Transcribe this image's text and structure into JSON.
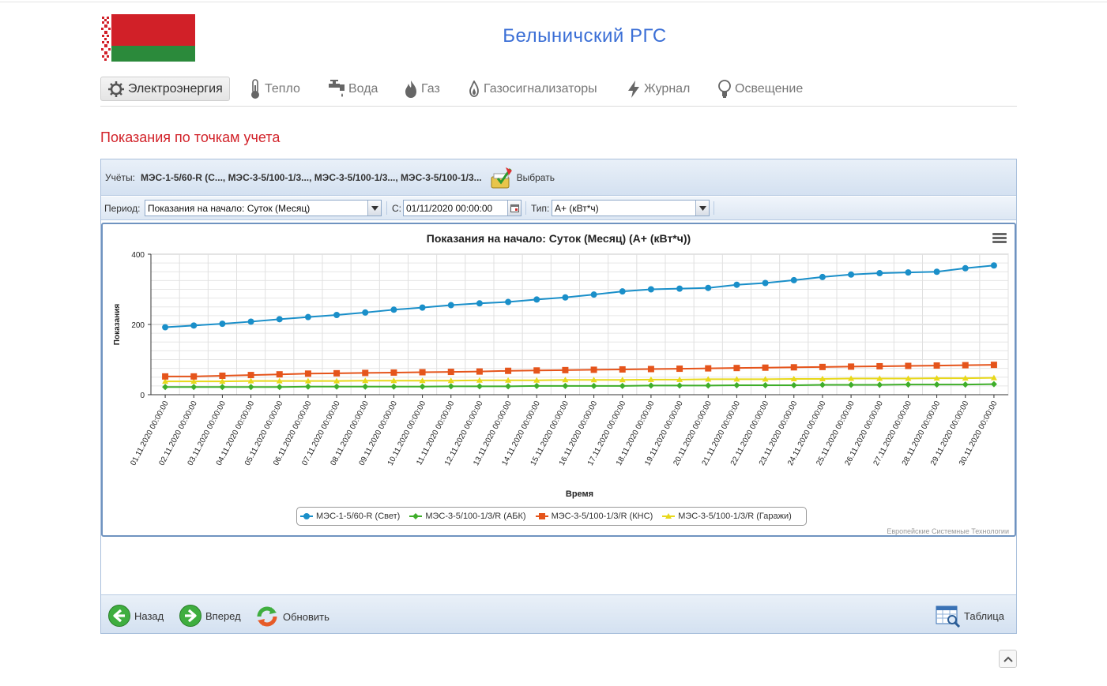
{
  "site": {
    "title": "Белыничский РГС"
  },
  "nav": {
    "items": [
      {
        "label": "Электроэнергия",
        "icon": "electricity-icon",
        "active": true
      },
      {
        "label": "Тепло",
        "icon": "thermometer-icon"
      },
      {
        "label": "Вода",
        "icon": "water-tap-icon"
      },
      {
        "label": "Газ",
        "icon": "flame-icon"
      },
      {
        "label": "Газосигнализаторы",
        "icon": "gas-alarm-icon"
      },
      {
        "label": "Журнал",
        "icon": "lightning-icon"
      },
      {
        "label": "Освещение",
        "icon": "lightbulb-icon"
      }
    ]
  },
  "page": {
    "section_title": "Показания по точкам учета"
  },
  "toolbar": {
    "meters_label": "Учёты:",
    "meters_value": "МЭС-1-5/60-R (С..., МЭС-3-5/100-1/3..., МЭС-3-5/100-1/3..., МЭС-3-5/100-1/3...",
    "choose_label": "Выбрать",
    "period_label": "Период:",
    "period_value": "Показания на начало: Суток (Месяц)",
    "from_label": "С:",
    "from_value": "01/11/2020 00:00:00",
    "type_label": "Тип:",
    "type_value": "A+ (кВт*ч)"
  },
  "bottom": {
    "back_label": "Назад",
    "forward_label": "Вперед",
    "refresh_label": "Обновить",
    "table_label": "Таблица"
  },
  "chart_credits": "Европейские Системные Технологии",
  "colors": {
    "accent": "#3b6fd6",
    "section_title": "#d2232a",
    "panel_border": "#6f93c0"
  },
  "chart_data": {
    "type": "line",
    "title": "Показания на начало: Суток (Месяц) (A+ (кВт*ч))",
    "xlabel": "Время",
    "ylabel": "Показания",
    "ylim": [
      0,
      400
    ],
    "yticks": [
      0,
      200,
      400
    ],
    "grid": true,
    "legend": "bottom-center",
    "categories": [
      "01.11.2020 00:00:00",
      "02.11.2020 00:00:00",
      "03.11.2020 00:00:00",
      "04.11.2020 00:00:00",
      "05.11.2020 00:00:00",
      "06.11.2020 00:00:00",
      "07.11.2020 00:00:00",
      "08.11.2020 00:00:00",
      "09.11.2020 00:00:00",
      "10.11.2020 00:00:00",
      "11.11.2020 00:00:00",
      "12.11.2020 00:00:00",
      "13.11.2020 00:00:00",
      "14.11.2020 00:00:00",
      "15.11.2020 00:00:00",
      "16.11.2020 00:00:00",
      "17.11.2020 00:00:00",
      "18.11.2020 00:00:00",
      "19.11.2020 00:00:00",
      "20.11.2020 00:00:00",
      "21.11.2020 00:00:00",
      "22.11.2020 00:00:00",
      "23.11.2020 00:00:00",
      "24.11.2020 00:00:00",
      "25.11.2020 00:00:00",
      "26.11.2020 00:00:00",
      "27.11.2020 00:00:00",
      "28.11.2020 00:00:00",
      "29.11.2020 00:00:00",
      "30.11.2020 00:00:00"
    ],
    "series": [
      {
        "name": "МЭС-1-5/60-R (Свет)",
        "color": "#1a8fc9",
        "marker": "circle",
        "values": [
          192,
          197,
          202,
          208,
          215,
          221,
          227,
          234,
          242,
          248,
          255,
          260,
          264,
          271,
          277,
          285,
          294,
          300,
          302,
          304,
          313,
          318,
          326,
          335,
          342,
          346,
          348,
          350,
          360,
          368
        ]
      },
      {
        "name": "МЭС-3-5/100-1/3/R (АБК)",
        "color": "#3fae2a",
        "marker": "diamond",
        "values": [
          22,
          22,
          22,
          22,
          22,
          23,
          23,
          23,
          23,
          23,
          24,
          24,
          24,
          25,
          25,
          25,
          25,
          26,
          26,
          26,
          27,
          27,
          27,
          28,
          28,
          28,
          29,
          29,
          29,
          30
        ]
      },
      {
        "name": "МЭС-3-5/100-1/3/R (КНС)",
        "color": "#e5541b",
        "marker": "square",
        "values": [
          52,
          52,
          54,
          56,
          58,
          60,
          61,
          62,
          63,
          64,
          65,
          66,
          68,
          69,
          70,
          71,
          72,
          73,
          74,
          75,
          76,
          77,
          78,
          79,
          80,
          81,
          82,
          83,
          84,
          85
        ]
      },
      {
        "name": "МЭС-3-5/100-1/3/R (Гаражи)",
        "color": "#e8d81a",
        "marker": "triangle",
        "values": [
          38,
          38,
          38,
          39,
          39,
          39,
          39,
          40,
          40,
          40,
          40,
          41,
          41,
          41,
          42,
          42,
          42,
          43,
          43,
          44,
          44,
          44,
          45,
          45,
          46,
          46,
          46,
          47,
          47,
          48
        ]
      }
    ]
  }
}
